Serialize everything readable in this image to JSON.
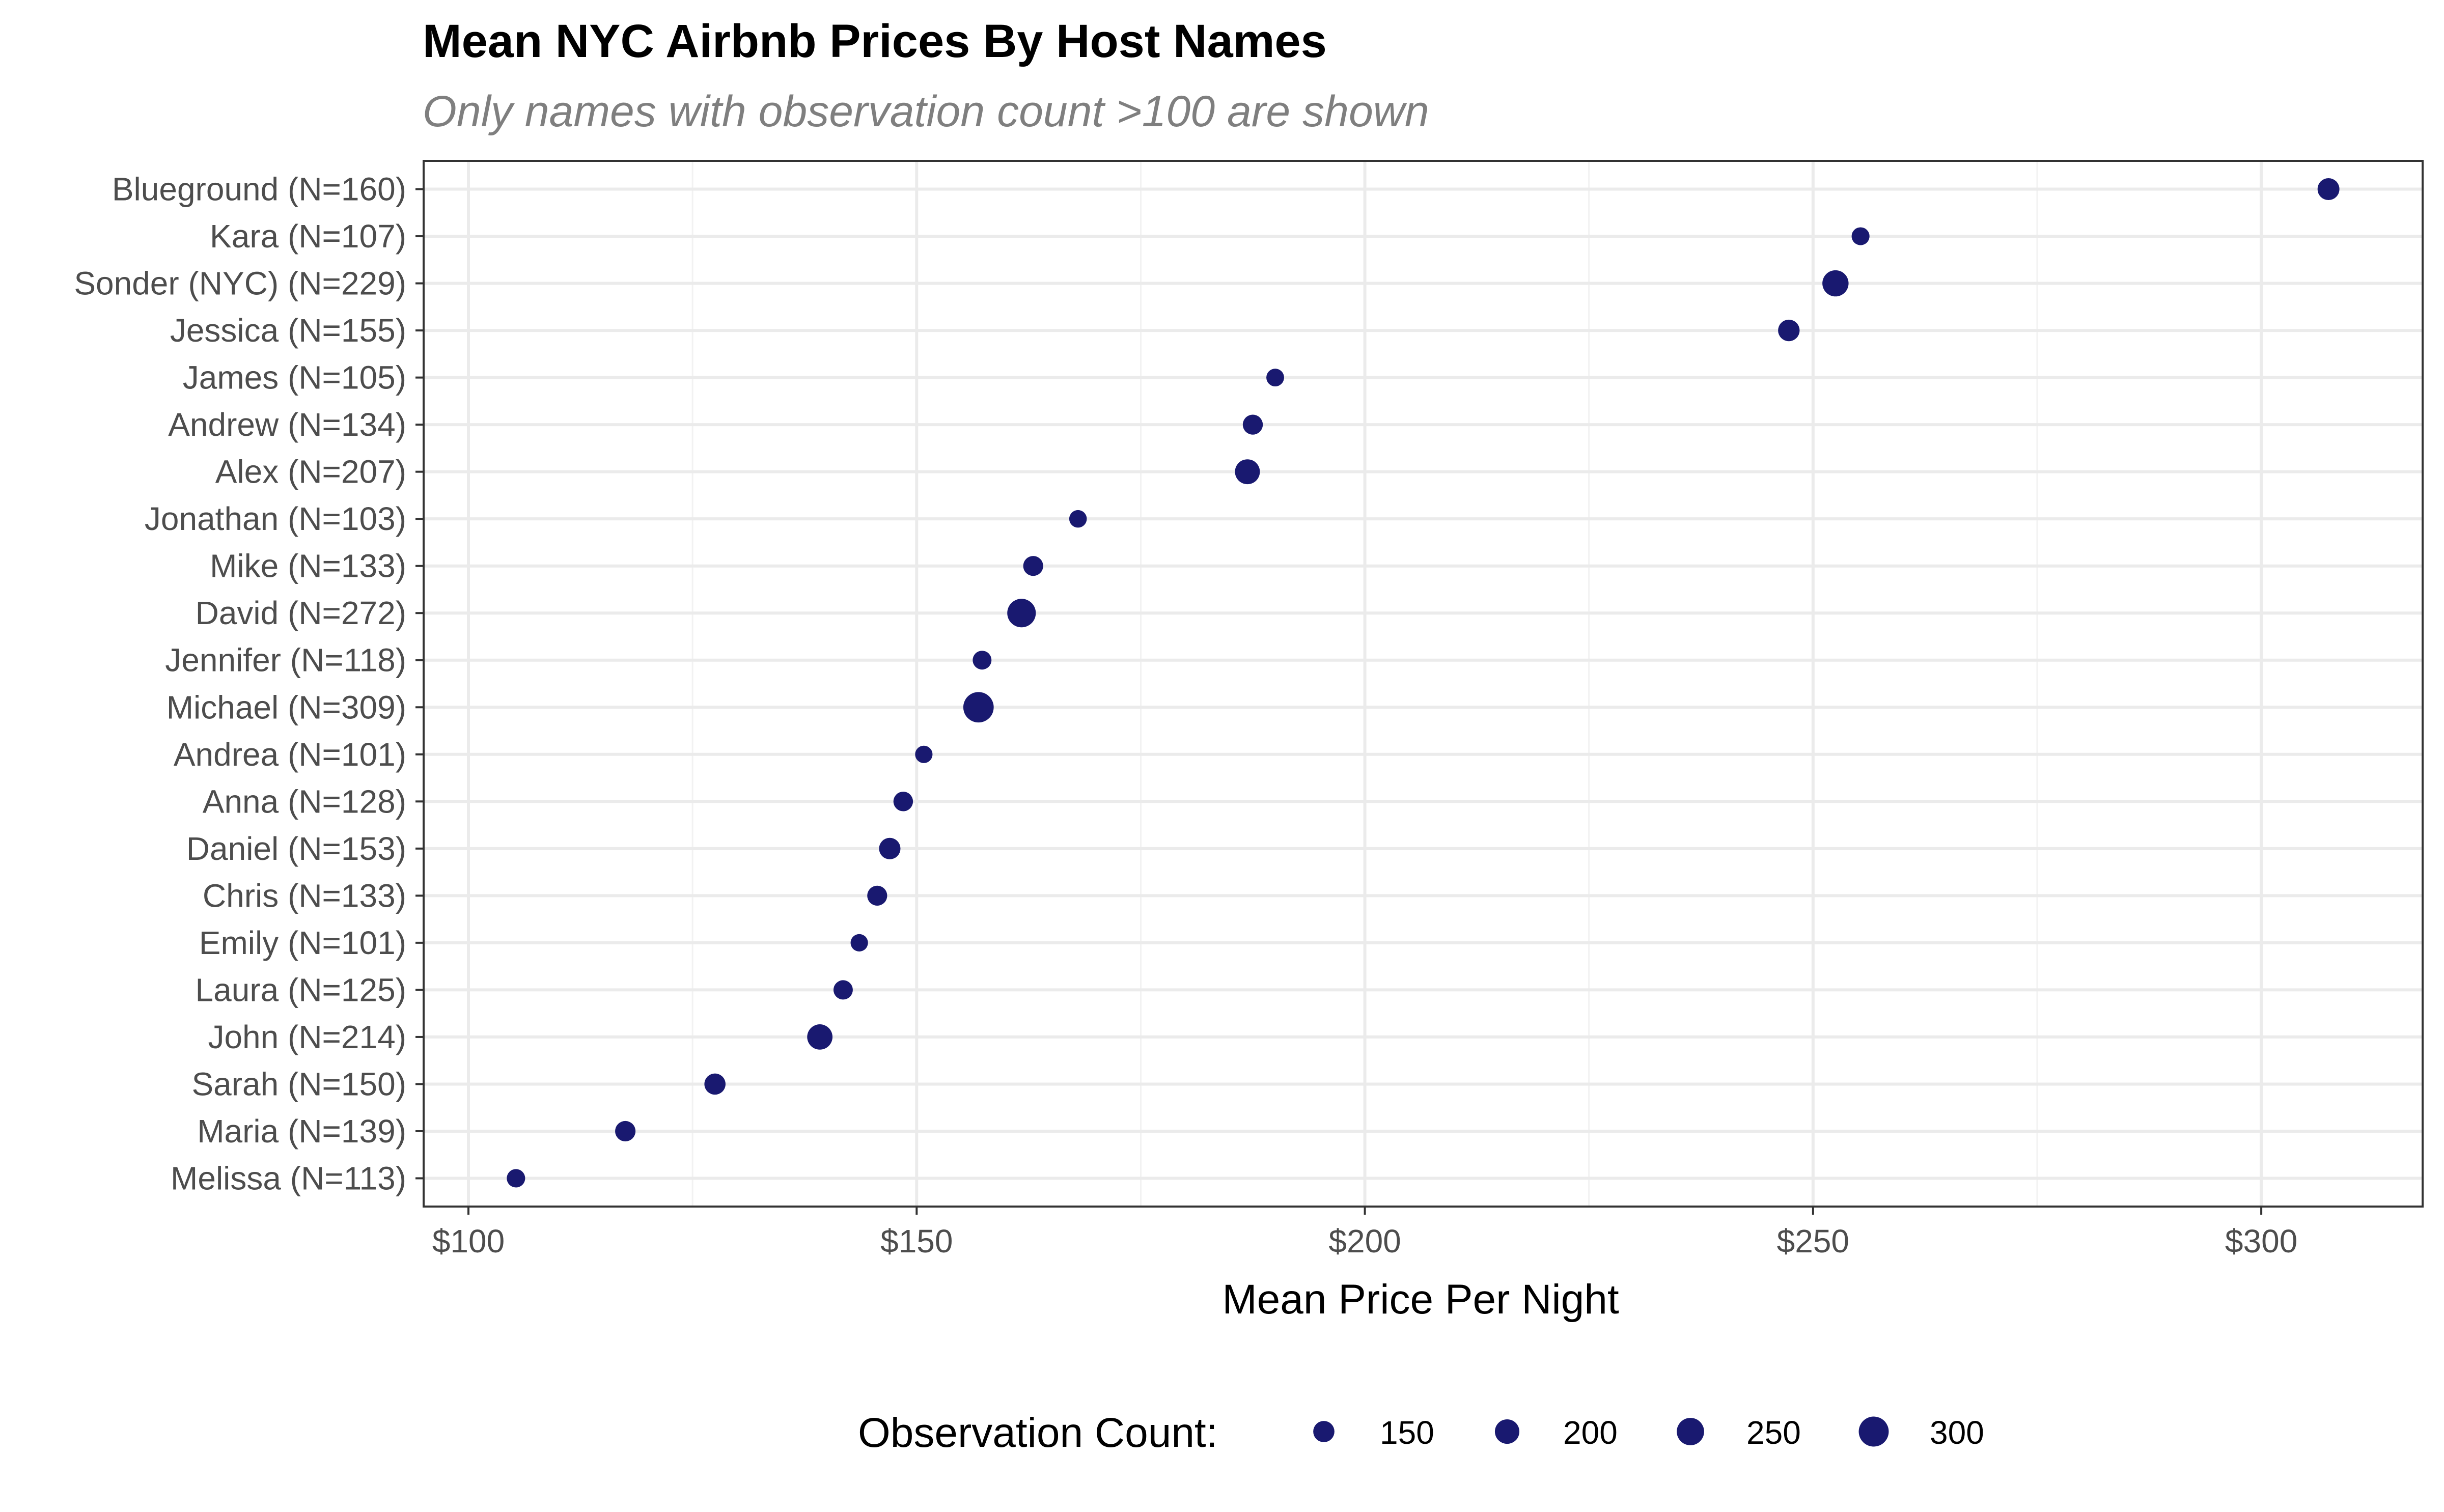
{
  "chart_data": {
    "type": "scatter",
    "title": "Mean NYC Airbnb Prices By Host Names",
    "subtitle": "Only names with observation count >100 are shown",
    "xlabel": "Mean Price Per Night",
    "ylabel": "",
    "xlim": [
      95,
      318
    ],
    "x_ticks": [
      100,
      150,
      200,
      250,
      300
    ],
    "x_tick_labels": [
      "$100",
      "$150",
      "$200",
      "$250",
      "$300"
    ],
    "grid": true,
    "point_color": "#191970",
    "points": [
      {
        "label": "Blueground (N=160)",
        "x": 307.5,
        "n": 160
      },
      {
        "label": "Kara (N=107)",
        "x": 255.3,
        "n": 107
      },
      {
        "label": "Sonder (NYC) (N=229)",
        "x": 252.5,
        "n": 229
      },
      {
        "label": "Jessica (N=155)",
        "x": 247.3,
        "n": 155
      },
      {
        "label": "James (N=105)",
        "x": 190.0,
        "n": 105
      },
      {
        "label": "Andrew (N=134)",
        "x": 187.5,
        "n": 134
      },
      {
        "label": "Alex (N=207)",
        "x": 186.9,
        "n": 207
      },
      {
        "label": "Jonathan (N=103)",
        "x": 168.0,
        "n": 103
      },
      {
        "label": "Mike (N=133)",
        "x": 163.0,
        "n": 133
      },
      {
        "label": "David (N=272)",
        "x": 161.7,
        "n": 272
      },
      {
        "label": "Jennifer (N=118)",
        "x": 157.3,
        "n": 118
      },
      {
        "label": "Michael (N=309)",
        "x": 156.9,
        "n": 309
      },
      {
        "label": "Andrea (N=101)",
        "x": 150.8,
        "n": 101
      },
      {
        "label": "Anna (N=128)",
        "x": 148.5,
        "n": 128
      },
      {
        "label": "Daniel (N=153)",
        "x": 147.0,
        "n": 153
      },
      {
        "label": "Chris (N=133)",
        "x": 145.6,
        "n": 133
      },
      {
        "label": "Emily (N=101)",
        "x": 143.6,
        "n": 101
      },
      {
        "label": "Laura (N=125)",
        "x": 141.8,
        "n": 125
      },
      {
        "label": "John (N=214)",
        "x": 139.2,
        "n": 214
      },
      {
        "label": "Sarah (N=150)",
        "x": 127.5,
        "n": 150
      },
      {
        "label": "Maria (N=139)",
        "x": 117.5,
        "n": 139
      },
      {
        "label": "Melissa (N=113)",
        "x": 105.3,
        "n": 113
      }
    ],
    "legend": {
      "title": "Observation Count:",
      "position": "bottom",
      "values": [
        150,
        200,
        250,
        300
      ],
      "labels": [
        "150",
        "200",
        "250",
        "300"
      ]
    }
  }
}
